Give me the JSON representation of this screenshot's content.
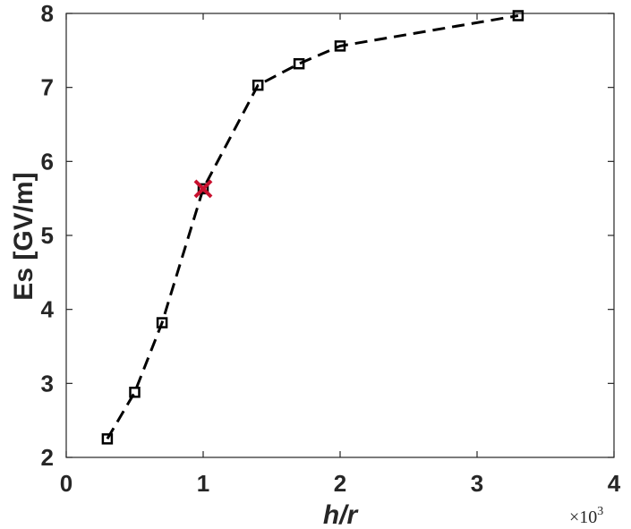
{
  "chart_data": {
    "type": "line",
    "title": "",
    "xlabel": "h/r",
    "ylabel": "Es [GV/m]",
    "x_multiplier": {
      "base": "×10",
      "exponent": "3"
    },
    "xlim": [
      0,
      4
    ],
    "ylim": [
      2,
      8
    ],
    "x_ticks": [
      "0",
      "1",
      "2",
      "3",
      "4"
    ],
    "y_ticks": [
      "2",
      "3",
      "4",
      "5",
      "6",
      "7",
      "8"
    ],
    "grid": false,
    "series": [
      {
        "line_style": "dashed",
        "marker": "square",
        "color": "#000000",
        "x": [
          0.3,
          0.5,
          0.7,
          1.0,
          1.4,
          1.7,
          2.0,
          3.3
        ],
        "y": [
          2.25,
          2.88,
          3.82,
          5.63,
          7.03,
          7.32,
          7.56,
          7.97
        ]
      }
    ],
    "highlight": {
      "x": 1.0,
      "y": 5.63,
      "marker": "x",
      "color": "#c8102e"
    }
  }
}
